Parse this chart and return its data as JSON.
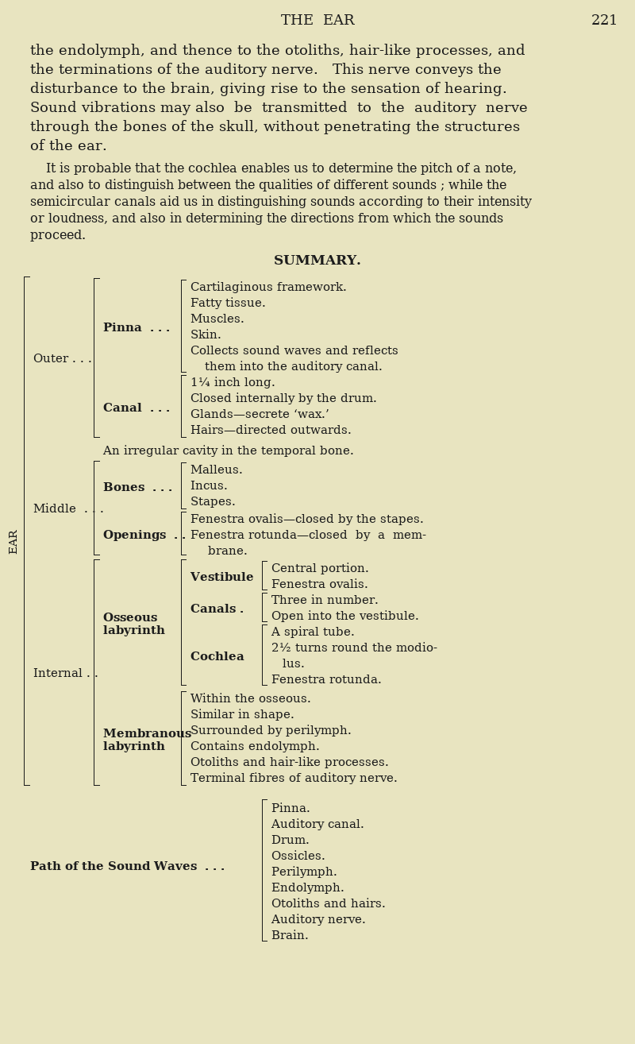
{
  "bg_color": "#e8e4c0",
  "text_color": "#1c1c1c",
  "page_width": 8.0,
  "page_height": 13.14,
  "dpi": 100
}
